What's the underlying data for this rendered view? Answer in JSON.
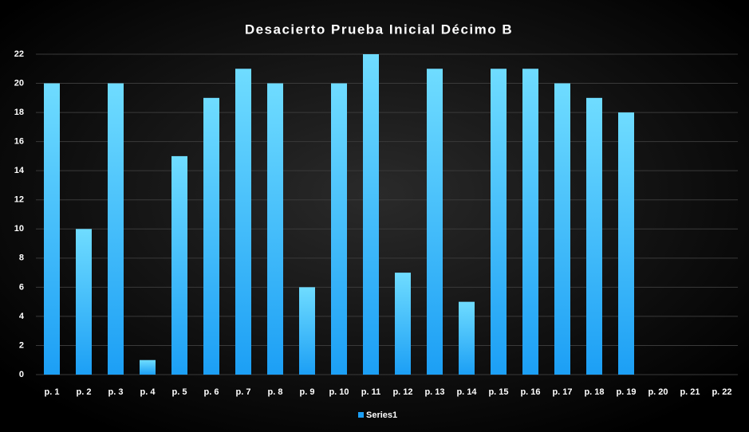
{
  "chart_data": {
    "type": "bar",
    "title": "Desacierto Prueba Inicial  Décimo B",
    "categories": [
      "p. 1",
      "p. 2",
      "p. 3",
      "p. 4",
      "p. 5",
      "p. 6",
      "p. 7",
      "p. 8",
      "p. 9",
      "p. 10",
      "p. 11",
      "p. 12",
      "p. 13",
      "p. 14",
      "p. 15",
      "p. 16",
      "p. 17",
      "p. 18",
      "p. 19",
      "p. 20",
      "p. 21",
      "p. 22"
    ],
    "series": [
      {
        "name": "Series1",
        "color": "#1c9ff5",
        "values": [
          20,
          10,
          20,
          1,
          15,
          19,
          21,
          20,
          6,
          20,
          22,
          7,
          21,
          5,
          21,
          21,
          20,
          19,
          18,
          null,
          null,
          null
        ]
      }
    ],
    "ylim": [
      0,
      22
    ],
    "yticks": [
      0,
      2,
      4,
      6,
      8,
      10,
      12,
      14,
      16,
      18,
      20,
      22
    ],
    "grid": true,
    "legend": "bottom"
  }
}
